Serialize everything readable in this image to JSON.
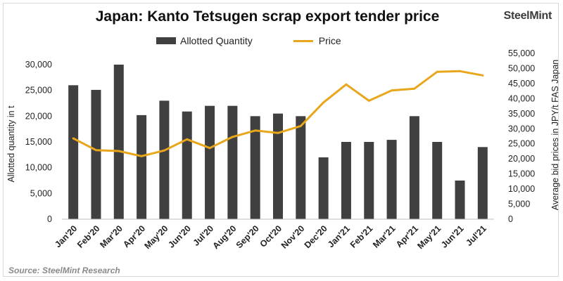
{
  "chart_data": {
    "type": "bar",
    "title": "Japan: Kanto Tetsugen scrap export tender price",
    "source": "Source: SteelMint Research",
    "brand": "SteelMint",
    "categories": [
      "Jan'20",
      "Feb'20",
      "Mar'20",
      "Apr'20",
      "May'20",
      "Jun'20",
      "Jul'20",
      "Aug'20",
      "Sep'20",
      "Oct'20",
      "Nov'20",
      "Dec'20",
      "Jan'21",
      "Feb'21",
      "Mar'21",
      "Apr'21",
      "May'21",
      "Jun'21",
      "Jul'21"
    ],
    "series": [
      {
        "name": "Allotted Quantity",
        "type": "bar",
        "axis": "left",
        "color": "#404040",
        "values": [
          26000,
          25100,
          30000,
          20200,
          23000,
          20900,
          22000,
          22000,
          20000,
          20500,
          20000,
          12000,
          15000,
          15000,
          15400,
          20000,
          15000,
          7500,
          14000
        ]
      },
      {
        "name": "Price",
        "type": "line",
        "axis": "right",
        "color": "#e8a61b",
        "values": [
          26800,
          22900,
          22600,
          20900,
          22800,
          26500,
          23600,
          27300,
          29400,
          28600,
          30900,
          38700,
          44700,
          39300,
          42700,
          43300,
          48900,
          49100,
          47700
        ]
      }
    ],
    "ylabel": "Allotted  quantity in t",
    "ylabel_right": "Average bid prices in JPY/t FAS Japan",
    "ylim": [
      0,
      30000
    ],
    "ylim_right": [
      0,
      55000
    ],
    "yticks": [
      "0",
      "5,000",
      "10,000",
      "15,000",
      "20,000",
      "25,000",
      "30,000"
    ],
    "yticks_right": [
      "0",
      "5,000",
      "10,000",
      "15,000",
      "20,000",
      "25,000",
      "30,000",
      "35,000",
      "40,000",
      "45,000",
      "50,000",
      "55,000"
    ],
    "grid": false,
    "legend_position": "top-center"
  }
}
